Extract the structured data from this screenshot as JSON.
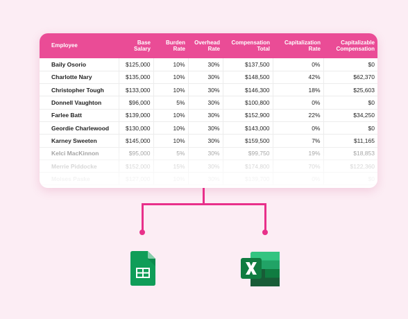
{
  "table": {
    "headers": [
      "Employee",
      "Base Salary",
      "Burden Rate",
      "Overhead Rate",
      "Compensation Total",
      "Capitalization Rate",
      "Capitalizable Compensation"
    ],
    "rows": [
      [
        "Baily Osorio",
        "$125,000",
        "10%",
        "30%",
        "$137,500",
        "0%",
        "$0"
      ],
      [
        "Charlotte Nary",
        "$135,000",
        "10%",
        "30%",
        "$148,500",
        "42%",
        "$62,370"
      ],
      [
        "Christopher Tough",
        "$133,000",
        "10%",
        "30%",
        "$146,300",
        "18%",
        "$25,603"
      ],
      [
        "Donnell Vaughton",
        "$96,000",
        "5%",
        "30%",
        "$100,800",
        "0%",
        "$0"
      ],
      [
        "Farlee Batt",
        "$139,000",
        "10%",
        "30%",
        "$152,900",
        "22%",
        "$34,250"
      ],
      [
        "Geordie Charlewood",
        "$130,000",
        "10%",
        "30%",
        "$143,000",
        "0%",
        "$0"
      ],
      [
        "Karney Sweeten",
        "$145,000",
        "10%",
        "30%",
        "$159,500",
        "7%",
        "$11,165"
      ],
      [
        "Kelci MacKinnon",
        "$95,000",
        "5%",
        "30%",
        "$99,750",
        "19%",
        "$18,853"
      ],
      [
        "Merrie Piddocke",
        "$152,000",
        "15%",
        "30%",
        "$174,800",
        "70%",
        "$122,360"
      ],
      [
        "Moises Paske",
        "$127,000",
        "10%",
        "30%",
        "$139,700",
        "0%",
        "$0"
      ]
    ]
  },
  "export_targets": [
    {
      "icon": "google-sheets-icon"
    },
    {
      "icon": "microsoft-excel-icon"
    }
  ],
  "colors": {
    "accent": "#ea4c96",
    "connector": "#e8308a",
    "background": "#fcedf4",
    "sheets_green": "#0f9d58",
    "excel_green": "#21a366"
  }
}
